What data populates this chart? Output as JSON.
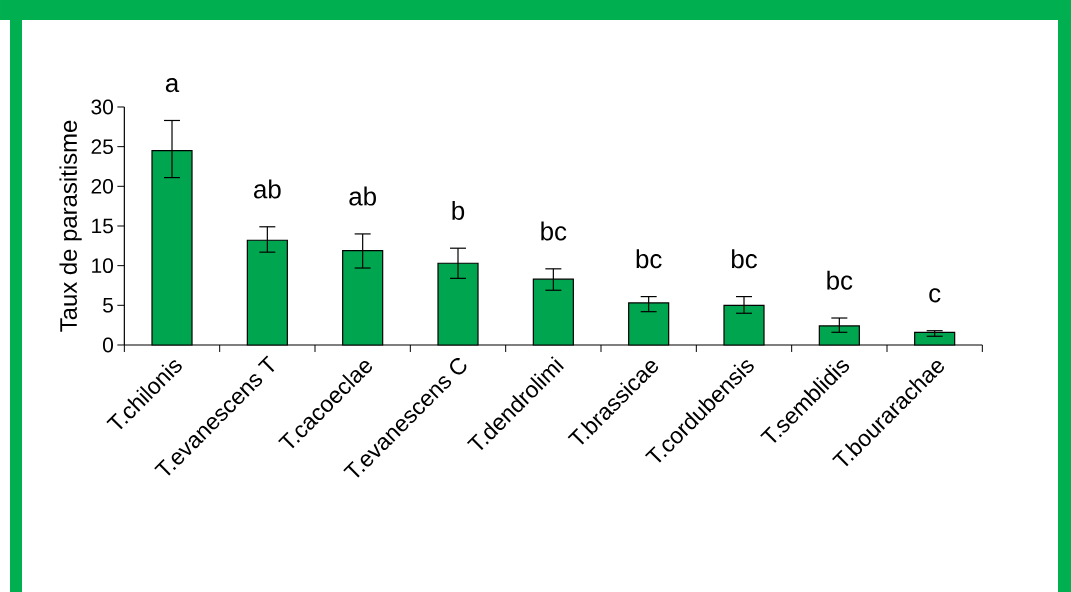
{
  "chart_data": {
    "type": "bar",
    "ylabel": "Taux de parasitisme",
    "categories": [
      "T.chilonis",
      "T.evanescens T",
      "T.cacoeclae",
      "T.evanescens C",
      "T.dendrolimi",
      "T.brassicae",
      "T.cordubensis",
      "T.semblidis",
      "T.bourarachae"
    ],
    "values": [
      24.5,
      13.2,
      11.9,
      10.3,
      8.3,
      5.3,
      5.0,
      2.4,
      1.6
    ],
    "errors": [
      [
        21.1,
        28.3
      ],
      [
        11.7,
        14.9
      ],
      [
        9.7,
        14.0
      ],
      [
        8.4,
        12.2
      ],
      [
        6.9,
        9.6
      ],
      [
        4.2,
        6.1
      ],
      [
        4.0,
        6.1
      ],
      [
        1.6,
        3.4
      ],
      [
        1.1,
        1.8
      ]
    ],
    "color": "#00a64f",
    "ylim": [
      0,
      30
    ],
    "yticks": [
      0,
      5,
      10,
      15,
      20,
      25,
      30
    ],
    "grid": false,
    "annotations": [
      "a",
      "ab",
      "ab",
      "b",
      "bc",
      "bc",
      "bc",
      "bc",
      "c"
    ]
  }
}
